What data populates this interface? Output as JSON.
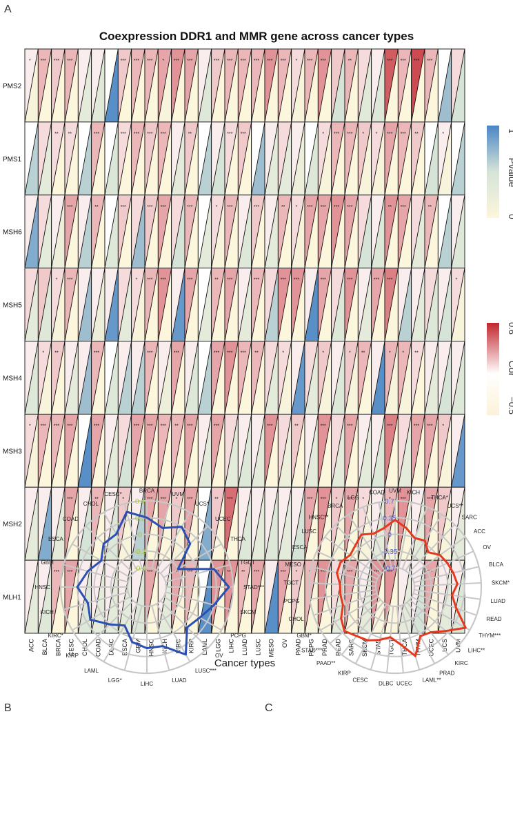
{
  "panels": {
    "a": "A",
    "b": "B",
    "c": "C"
  },
  "heatmap": {
    "title": "Coexpression DDR1 and MMR gene across cancer types",
    "xlabel": "Cancer types",
    "cancers": [
      "ACC",
      "BLCA",
      "BRCA",
      "CESC",
      "CHOL",
      "COAD",
      "DLBC",
      "ESCA",
      "GBM",
      "HNSC",
      "KICH",
      "KIRC",
      "KIRP",
      "LAML",
      "LGG",
      "LIHC",
      "LUAD",
      "LUSC",
      "MESO",
      "OV",
      "PAAD",
      "PCPG",
      "PRAD",
      "READ",
      "SARC",
      "SKCM",
      "STAD",
      "TGCT",
      "THCA",
      "THYM",
      "UCEC",
      "UCS",
      "UVM"
    ],
    "genes": [
      "PMS2",
      "PMS1",
      "MSH6",
      "MSH5",
      "MSH4",
      "MSH3",
      "MSH2",
      "MLH1"
    ],
    "stars": [
      [
        "*",
        "***",
        "***",
        "***",
        "",
        "",
        "",
        "***",
        "***",
        "***",
        "*",
        "***",
        "***",
        "",
        "***",
        "***",
        "***",
        "***",
        "***",
        "***",
        "*",
        "***",
        "***",
        "",
        "**",
        "",
        "",
        "***",
        "***",
        "***",
        "***",
        "",
        ""
      ],
      [
        "",
        "",
        "**",
        "**",
        "",
        "***",
        "",
        "***",
        "***",
        "***",
        "***",
        "",
        "**",
        "",
        "",
        "***",
        "***",
        "",
        "",
        "",
        "",
        "",
        "*",
        "***",
        "***",
        "*",
        "*",
        "***",
        "***",
        "**",
        "",
        "*",
        ""
      ],
      [
        "",
        "",
        "",
        "***",
        "",
        "**",
        "",
        "***",
        "",
        "***",
        "***",
        "",
        "***",
        "",
        "*",
        "***",
        "",
        "***",
        "",
        "**",
        "*",
        "***",
        "***",
        "***",
        "***",
        "",
        "",
        "**",
        "***",
        "",
        "**",
        "",
        ""
      ],
      [
        "",
        "",
        "*",
        "***",
        "",
        "",
        "",
        "",
        "*",
        "***",
        "***",
        "",
        "***",
        "",
        "**",
        "***",
        "",
        "***",
        "",
        "***",
        "***",
        "",
        "***",
        "",
        "***",
        "",
        "***",
        "***",
        "",
        "",
        "",
        "",
        "*"
      ],
      [
        "",
        "*",
        "**",
        "",
        "",
        "***",
        "",
        "",
        "",
        "***",
        "",
        "***",
        "",
        "",
        "***",
        "***",
        "***",
        "**",
        "",
        "*",
        "",
        "",
        "*",
        "",
        "*",
        "**",
        "",
        "*",
        "*",
        "**",
        "",
        "",
        ""
      ],
      [
        "*",
        "***",
        "***",
        "***",
        "",
        "***",
        "",
        "",
        "***",
        "***",
        "***",
        "**",
        "***",
        "",
        "***",
        "",
        "",
        "",
        "***",
        "",
        "**",
        "",
        "***",
        "",
        "***",
        "",
        "",
        "***",
        "",
        "***",
        "***",
        "*",
        ""
      ],
      [
        "",
        "",
        "",
        "***",
        "",
        "**",
        "",
        "*",
        "",
        "***",
        "***",
        "*",
        "***",
        "",
        "**",
        "***",
        "",
        "",
        "",
        "",
        "",
        "***",
        "***",
        "*",
        "***",
        "*",
        "",
        "*",
        "***",
        "",
        "***",
        "*",
        ""
      ],
      [
        "",
        "",
        "***",
        "***",
        "",
        "",
        "",
        "",
        "",
        "***",
        "",
        "***",
        "***",
        "",
        "***",
        "***",
        "**",
        "***",
        "",
        "***",
        "*",
        "*",
        "***",
        "",
        "***",
        "",
        "***",
        "***",
        "",
        "",
        "***",
        "",
        ""
      ]
    ],
    "legend_pvalue": {
      "title": "Pvalue",
      "max_label": "1",
      "min_label": "0",
      "colors": [
        "#FCF6DC",
        "#4A86C5"
      ]
    },
    "legend_cor": {
      "title": "Cor",
      "max_label": "0.6",
      "min_label": "−0.5",
      "colors": [
        "#FCF2D8",
        "#FFFFFF",
        "#C2262E"
      ]
    }
  },
  "chart_data": [
    {
      "type": "heatmap",
      "title": "Coexpression DDR1 and MMR gene across cancer types",
      "xlabel": "Cancer types",
      "ylabel": "",
      "x": [
        "ACC",
        "BLCA",
        "BRCA",
        "CESC",
        "CHOL",
        "COAD",
        "DLBC",
        "ESCA",
        "GBM",
        "HNSC",
        "KICH",
        "KIRC",
        "KIRP",
        "LAML",
        "LGG",
        "LIHC",
        "LUAD",
        "LUSC",
        "MESO",
        "OV",
        "PAAD",
        "PCPG",
        "PRAD",
        "READ",
        "SARC",
        "SKCM",
        "STAD",
        "TGCT",
        "THCA",
        "THYM",
        "UCEC",
        "UCS",
        "UVM"
      ],
      "y": [
        "PMS2",
        "PMS1",
        "MSH6",
        "MSH5",
        "MSH4",
        "MSH3",
        "MSH2",
        "MLH1"
      ],
      "pvalue_range": [
        0,
        1
      ],
      "cor_range": [
        -0.5,
        0.6
      ],
      "cor": [
        [
          0.05,
          0.2,
          0.15,
          0.2,
          0.05,
          0.05,
          -0.05,
          0.15,
          0.2,
          0.2,
          0.25,
          0.3,
          0.25,
          0.05,
          0.15,
          0.2,
          0.2,
          0.2,
          0.3,
          0.2,
          0.1,
          0.2,
          0.3,
          0.15,
          0.2,
          0.1,
          0.05,
          0.45,
          0.2,
          0.5,
          0.2,
          0.0,
          0.1
        ],
        [
          0.0,
          0.1,
          0.1,
          0.1,
          0.0,
          0.2,
          0.0,
          0.1,
          0.2,
          0.15,
          0.2,
          0.05,
          0.15,
          0.0,
          0.05,
          0.1,
          0.15,
          0.0,
          0.05,
          0.1,
          0.05,
          0.0,
          0.1,
          0.2,
          0.2,
          0.15,
          0.1,
          0.25,
          0.2,
          0.15,
          0.0,
          0.05,
          0.0
        ],
        [
          0.05,
          0.1,
          0.05,
          0.25,
          0.05,
          0.2,
          0.0,
          0.15,
          0.1,
          0.15,
          0.25,
          0.1,
          0.2,
          0.0,
          0.1,
          0.2,
          0.05,
          0.15,
          0.05,
          0.2,
          0.1,
          0.25,
          0.25,
          0.3,
          0.25,
          0.1,
          0.05,
          0.3,
          0.25,
          0.1,
          0.2,
          0.0,
          0.05
        ],
        [
          0.1,
          0.15,
          0.1,
          0.2,
          0.05,
          0.05,
          0.05,
          0.1,
          0.1,
          0.2,
          0.3,
          0.05,
          0.25,
          0.0,
          0.2,
          0.25,
          0.05,
          0.2,
          0.1,
          0.3,
          0.3,
          0.05,
          0.25,
          0.1,
          0.3,
          0.05,
          0.25,
          0.35,
          0.05,
          0.05,
          0.1,
          0.05,
          0.1
        ],
        [
          0.05,
          0.1,
          0.15,
          0.05,
          0.05,
          0.2,
          0.0,
          0.05,
          0.05,
          0.2,
          0.05,
          0.25,
          0.05,
          0.0,
          0.25,
          0.3,
          0.2,
          0.2,
          0.1,
          0.1,
          0.05,
          0.1,
          0.15,
          0.05,
          0.15,
          0.2,
          0.05,
          0.2,
          0.2,
          0.1,
          0.05,
          0.05,
          0.05
        ],
        [
          0.1,
          0.2,
          0.2,
          0.25,
          0.0,
          0.25,
          0.05,
          0.1,
          0.25,
          0.25,
          0.2,
          0.2,
          0.25,
          0.05,
          0.25,
          0.1,
          0.05,
          0.05,
          0.3,
          0.1,
          0.15,
          0.05,
          0.3,
          0.1,
          0.25,
          0.05,
          0.05,
          0.35,
          0.1,
          0.25,
          0.25,
          0.15,
          0.05
        ],
        [
          0.05,
          0.05,
          0.05,
          0.25,
          0.05,
          0.2,
          0.05,
          0.15,
          0.05,
          0.25,
          0.25,
          0.15,
          0.25,
          0.0,
          0.15,
          0.4,
          0.05,
          0.05,
          0.05,
          0.05,
          0.05,
          0.25,
          0.3,
          0.15,
          0.25,
          0.1,
          0.05,
          0.2,
          0.3,
          0.05,
          0.25,
          0.15,
          0.05
        ],
        [
          0.05,
          0.05,
          0.2,
          0.25,
          0.05,
          0.05,
          0.05,
          0.05,
          0.05,
          0.25,
          0.05,
          0.25,
          0.2,
          0.0,
          0.3,
          0.3,
          0.2,
          0.25,
          0.05,
          0.25,
          0.15,
          0.2,
          0.3,
          0.1,
          0.25,
          0.05,
          0.3,
          0.3,
          0.05,
          0.05,
          0.25,
          0.05,
          0.05
        ]
      ],
      "pvalue": [
        [
          0.05,
          0.0,
          0.0,
          0.0,
          0.3,
          0.35,
          0.95,
          0.0,
          0.0,
          0.0,
          0.05,
          0.0,
          0.0,
          0.4,
          0.0,
          0.0,
          0.0,
          0.0,
          0.0,
          0.0,
          0.05,
          0.0,
          0.0,
          0.5,
          0.01,
          0.35,
          0.4,
          0.0,
          0.0,
          0.0,
          0.0,
          0.7,
          0.5
        ],
        [
          0.6,
          0.3,
          0.01,
          0.01,
          0.6,
          0.0,
          0.45,
          0.0,
          0.0,
          0.0,
          0.0,
          0.3,
          0.01,
          0.6,
          0.5,
          0.0,
          0.0,
          0.7,
          0.3,
          0.3,
          0.2,
          0.4,
          0.05,
          0.0,
          0.0,
          0.05,
          0.05,
          0.0,
          0.0,
          0.01,
          0.5,
          0.05,
          0.6
        ],
        [
          0.8,
          0.3,
          0.2,
          0.0,
          0.6,
          0.01,
          0.4,
          0.0,
          0.7,
          0.0,
          0.0,
          0.5,
          0.0,
          0.3,
          0.05,
          0.0,
          0.4,
          0.0,
          0.3,
          0.01,
          0.05,
          0.0,
          0.0,
          0.0,
          0.0,
          0.5,
          0.4,
          0.01,
          0.0,
          0.3,
          0.01,
          0.6,
          0.4
        ],
        [
          0.3,
          0.4,
          0.05,
          0.0,
          0.7,
          0.2,
          0.9,
          0.3,
          0.05,
          0.0,
          0.0,
          0.9,
          0.0,
          0.3,
          0.01,
          0.0,
          0.3,
          0.0,
          0.6,
          0.0,
          0.0,
          0.95,
          0.0,
          0.4,
          0.0,
          0.3,
          0.0,
          0.0,
          0.6,
          0.3,
          0.4,
          0.5,
          0.05
        ],
        [
          0.4,
          0.05,
          0.01,
          0.3,
          0.7,
          0.0,
          0.4,
          0.6,
          0.6,
          0.0,
          0.2,
          0.0,
          0.4,
          0.6,
          0.0,
          0.0,
          0.0,
          0.01,
          0.3,
          0.05,
          0.9,
          0.3,
          0.05,
          0.4,
          0.05,
          0.01,
          0.95,
          0.05,
          0.05,
          0.01,
          0.3,
          0.5,
          0.4
        ],
        [
          0.05,
          0.0,
          0.0,
          0.0,
          0.95,
          0.0,
          0.3,
          0.5,
          0.0,
          0.0,
          0.0,
          0.01,
          0.0,
          0.3,
          0.0,
          0.3,
          0.4,
          0.3,
          0.0,
          0.2,
          0.01,
          0.3,
          0.0,
          0.3,
          0.0,
          0.3,
          0.4,
          0.0,
          0.3,
          0.0,
          0.0,
          0.05,
          0.9
        ],
        [
          0.3,
          0.8,
          0.3,
          0.0,
          0.5,
          0.01,
          0.4,
          0.05,
          0.6,
          0.0,
          0.0,
          0.05,
          0.0,
          0.8,
          0.01,
          0.0,
          0.4,
          0.3,
          0.4,
          0.3,
          0.5,
          0.0,
          0.0,
          0.05,
          0.0,
          0.05,
          0.3,
          0.05,
          0.0,
          0.3,
          0.0,
          0.05,
          0.3
        ],
        [
          0.3,
          0.4,
          0.0,
          0.0,
          0.4,
          0.3,
          0.3,
          0.3,
          0.4,
          0.0,
          0.3,
          0.0,
          0.0,
          0.95,
          0.0,
          0.0,
          0.01,
          0.0,
          0.95,
          0.0,
          0.05,
          0.05,
          0.0,
          0.3,
          0.0,
          0.3,
          0.0,
          0.0,
          0.3,
          0.5,
          0.0,
          0.3,
          0.4
        ]
      ]
    },
    {
      "type": "radar",
      "panel": "B",
      "categories": [
        "BRCA",
        "UVM",
        "UCS*",
        "UCEC",
        "THCA",
        "TGCT",
        "STAD***",
        "SKCM",
        "PCPG",
        "OV",
        "LUSC***",
        "LUAD",
        "LIHC",
        "LGG*",
        "LAML",
        "KIRP",
        "KIRC*",
        "KICH",
        "HNSC",
        "GBM",
        "ESCA",
        "COAD",
        "CHOL",
        "CESC*"
      ],
      "values": [
        0.2,
        0.1,
        0.2,
        0.1,
        -0.2,
        0.2,
        0.35,
        0.2,
        0.1,
        0.05,
        0.3,
        0.1,
        0.1,
        0.05,
        -0.1,
        0.0,
        0.15,
        0.1,
        0.2,
        0.1,
        0.0,
        0.1,
        0.1,
        0.3
      ],
      "rlim": [
        -0.4,
        0.4
      ],
      "tick_labels": [
        "0.4",
        "0.2",
        "0",
        "-0.2",
        "-0.4"
      ],
      "color": "#2B4FB3",
      "tick_color": "#9DC83A"
    },
    {
      "type": "radar",
      "panel": "C",
      "categories": [
        "UVM",
        "KICH",
        "THCA*",
        "UCS**",
        "SARC",
        "ACC",
        "OV",
        "BLCA",
        "SKCM*",
        "LUAD",
        "READ",
        "THYM***",
        "LIHC**",
        "KIRC",
        "PRAD",
        "LAML**",
        "UCEC",
        "DLBC",
        "CESC",
        "KIRP",
        "PAAD**",
        "STAD***",
        "GBM*",
        "CHOL",
        "PCPG",
        "TGCT",
        "MESO",
        "ESCA",
        "LUSC",
        "HNSC**",
        "BRCA",
        "LGG",
        "COAD"
      ],
      "values": [
        0.3,
        0.15,
        0.0,
        0.05,
        -0.1,
        0.05,
        0.1,
        0.15,
        0.2,
        0.1,
        0.25,
        0.6,
        0.3,
        0.1,
        0.05,
        0.4,
        0.1,
        -0.05,
        0.05,
        0.15,
        0.2,
        0.3,
        0.2,
        0.05,
        0.05,
        0.05,
        0.15,
        0.15,
        0.05,
        0.1,
        0.2,
        0.1,
        0.15
      ],
      "rlim": [
        -0.7,
        0.7
      ],
      "tick_labels": [
        "0.7",
        "0.35",
        "0",
        "-0.35",
        "-0.7"
      ],
      "color": "#E5391F",
      "tick_color": "#5A5FC8"
    }
  ]
}
